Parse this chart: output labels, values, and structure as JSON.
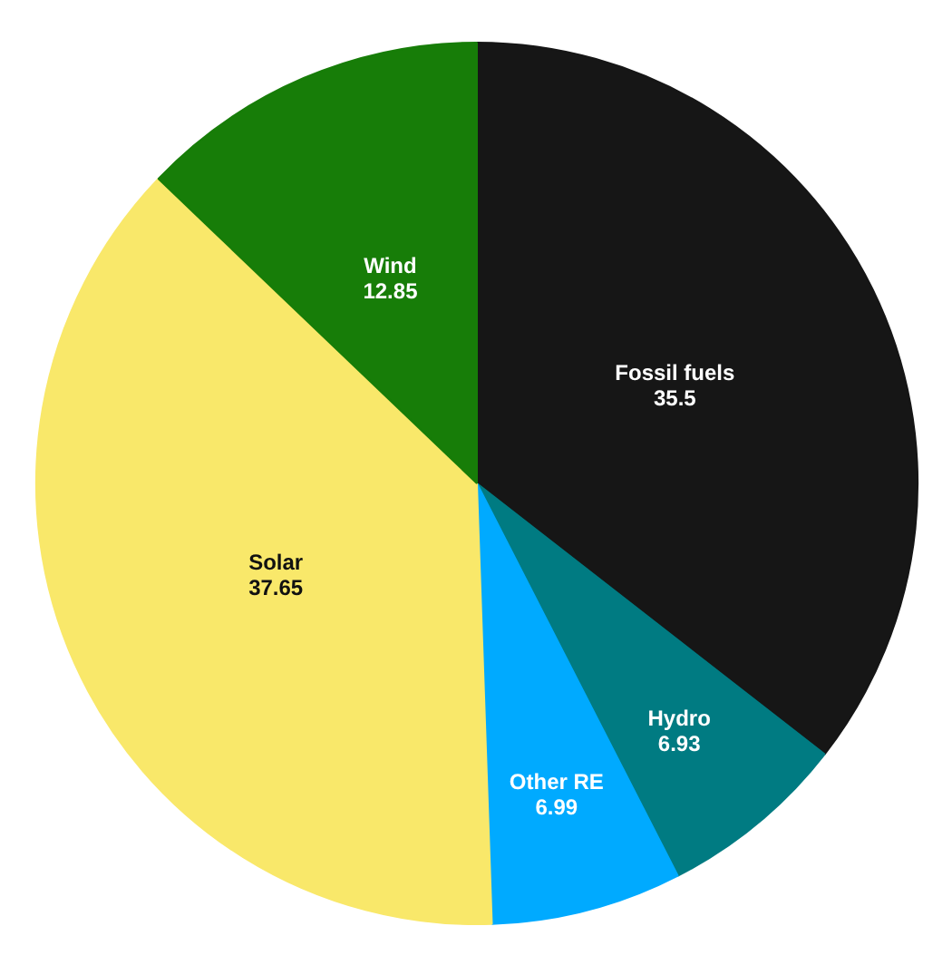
{
  "chart_data": {
    "type": "pie",
    "categories": [
      "Fossil fuels",
      "Hydro",
      "Other RE",
      "Solar",
      "Wind"
    ],
    "values": [
      35.5,
      6.93,
      6.99,
      37.65,
      12.85
    ],
    "colors": [
      "#161616",
      "#007b82",
      "#00aaff",
      "#f9e86a",
      "#177d08"
    ],
    "data_labels": true
  }
}
